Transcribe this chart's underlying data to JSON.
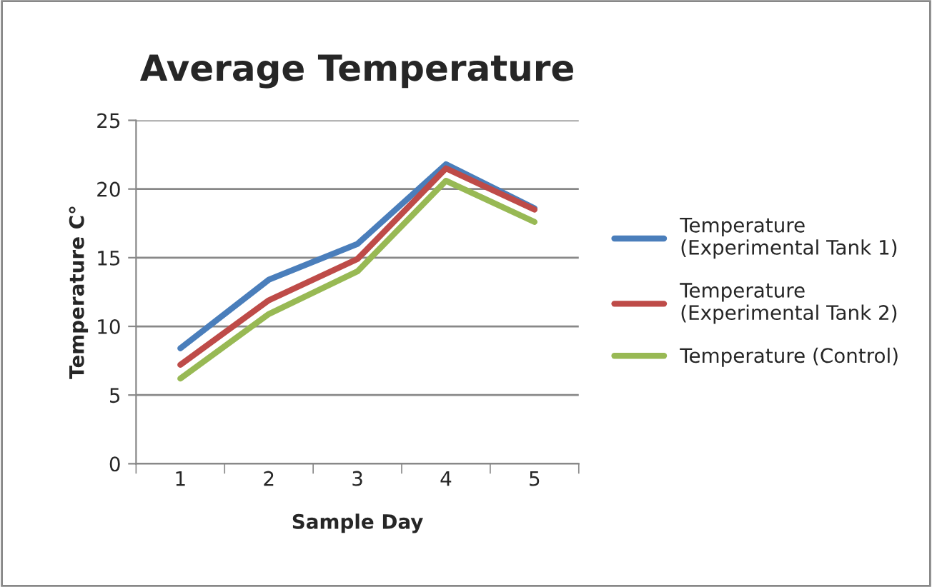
{
  "chart_data": {
    "type": "line",
    "title": "Average Temperature",
    "xlabel": "Sample Day",
    "ylabel": "Temperature C°",
    "categories": [
      "1",
      "2",
      "3",
      "4",
      "5"
    ],
    "series": [
      {
        "name": "Temperature (Experimental Tank 1)",
        "color": "#4a7ebb",
        "values": [
          8.4,
          13.4,
          16.0,
          21.8,
          18.6
        ]
      },
      {
        "name": "Temperature (Experimental Tank 2)",
        "color": "#be4b48",
        "values": [
          7.2,
          11.9,
          14.9,
          21.5,
          18.5
        ]
      },
      {
        "name": "Temperature (Control)",
        "color": "#98b954",
        "values": [
          6.2,
          10.9,
          14.0,
          20.6,
          17.6
        ]
      }
    ],
    "ylim": [
      0,
      25
    ],
    "yticks": [
      0,
      5,
      10,
      15,
      20,
      25
    ],
    "grid": "y",
    "legend": "right",
    "marker": "none",
    "line_style": "solid"
  }
}
